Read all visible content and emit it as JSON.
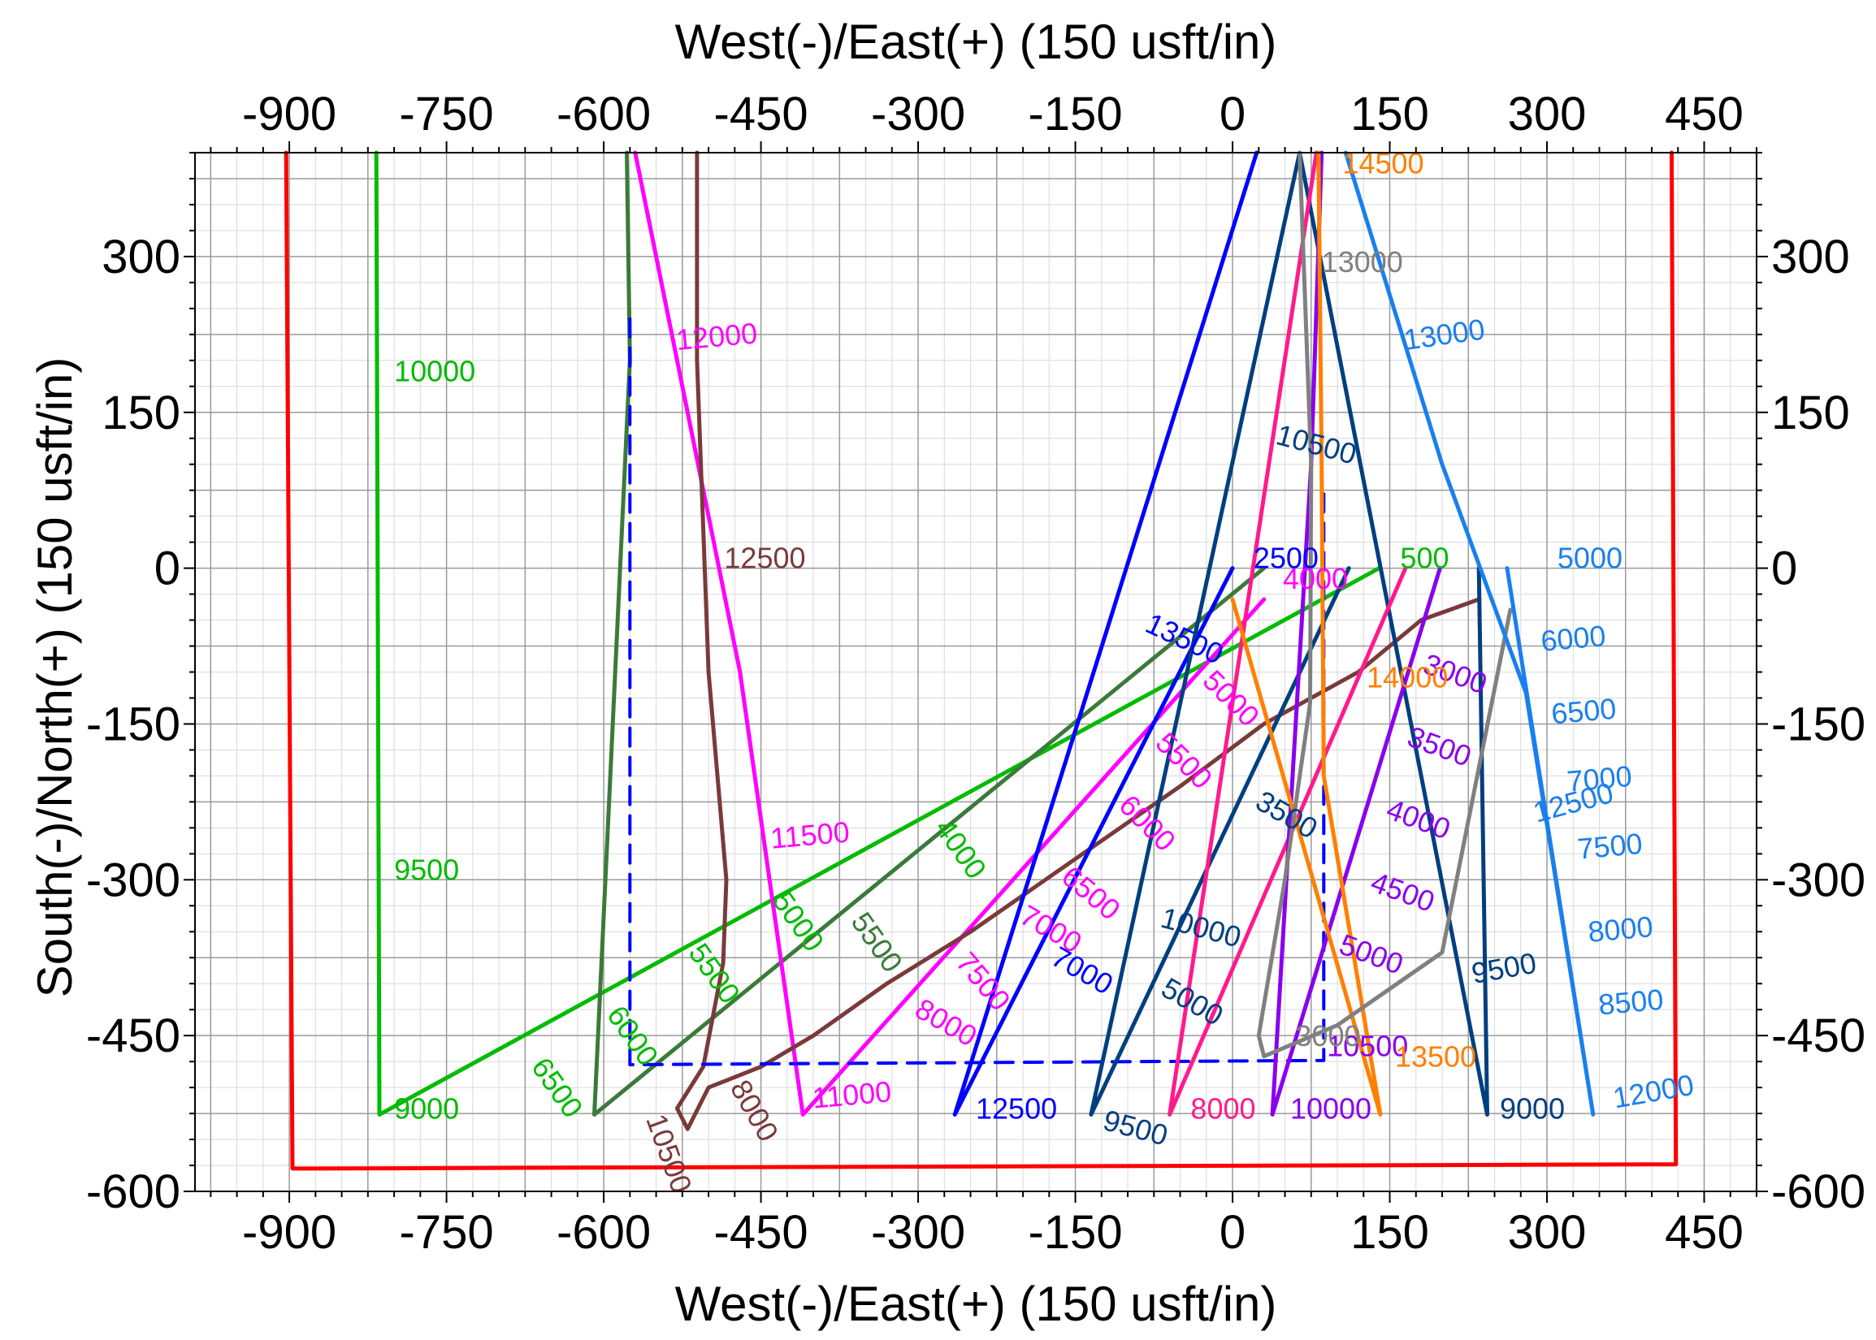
{
  "chart_data": {
    "type": "line",
    "title": "",
    "x_axis_title_top": "West(-)/East(+) (150 usft/in)",
    "x_axis_title_bottom": "West(-)/East(+) (150 usft/in)",
    "y_axis_title_left": "South(-)/North(+) (150 usft/in)",
    "xlim": [
      -990,
      500
    ],
    "ylim": [
      -600,
      400
    ],
    "x_ticks": [
      -900,
      -750,
      -600,
      -450,
      -300,
      -150,
      0,
      150,
      300,
      450
    ],
    "y_ticks": [
      -600,
      -450,
      -300,
      -150,
      0,
      150,
      300
    ],
    "grid": true,
    "series": [
      {
        "color": "#ff0000",
        "width": 5,
        "dash": false,
        "points": [
          [
            -903,
            400
          ],
          [
            -897,
            -578
          ],
          [
            423,
            -574
          ],
          [
            419,
            400
          ]
        ]
      },
      {
        "color": "#00bb00",
        "width": 5,
        "dash": false,
        "points": [
          [
            -817,
            400
          ],
          [
            -814,
            -526
          ],
          [
            140,
            0
          ]
        ]
      },
      {
        "color": "#3a7a3a",
        "width": 5,
        "dash": false,
        "points": [
          [
            -578,
            400
          ],
          [
            -575,
            200
          ],
          [
            -609,
            -526
          ],
          [
            30,
            0
          ]
        ]
      },
      {
        "color": "#ff00ff",
        "width": 5,
        "dash": false,
        "points": [
          [
            -570,
            400
          ],
          [
            -530,
            200
          ],
          [
            -470,
            -100
          ],
          [
            -410,
            -526
          ],
          [
            30,
            -30
          ]
        ]
      },
      {
        "color": "#7a3a3a",
        "width": 5,
        "dash": false,
        "points": [
          [
            -511,
            400
          ],
          [
            -511,
            200
          ],
          [
            -500,
            -100
          ],
          [
            -483,
            -300
          ],
          [
            -486,
            -380
          ],
          [
            -505,
            -480
          ],
          [
            -530,
            -520
          ],
          [
            -520,
            -540
          ],
          [
            -500,
            -500
          ],
          [
            -450,
            -480
          ],
          [
            -400,
            -450
          ],
          [
            -330,
            -400
          ],
          [
            -250,
            -350
          ],
          [
            -150,
            -280
          ],
          [
            -50,
            -210
          ],
          [
            30,
            -150
          ],
          [
            120,
            -100
          ],
          [
            180,
            -50
          ],
          [
            235,
            -30
          ]
        ]
      },
      {
        "color": "#0000ff",
        "width": 4,
        "dash": true,
        "points": [
          [
            -575,
            240
          ],
          [
            -575,
            -478
          ],
          [
            87,
            -474
          ],
          [
            87,
            80
          ]
        ]
      },
      {
        "color": "#0000ff",
        "width": 5,
        "dash": false,
        "points": [
          [
            23,
            400
          ],
          [
            -265,
            -526
          ],
          [
            0,
            0
          ]
        ]
      },
      {
        "color": "#003f7f",
        "width": 5,
        "dash": false,
        "points": [
          [
            64,
            400
          ],
          [
            -135,
            -526
          ],
          [
            111,
            0
          ]
        ]
      },
      {
        "color": "#003f7f",
        "width": 5,
        "dash": false,
        "points": [
          [
            64,
            400
          ],
          [
            243,
            -526
          ],
          [
            235,
            0
          ]
        ]
      },
      {
        "color": "#ff1a8c",
        "width": 5,
        "dash": false,
        "points": [
          [
            80,
            400
          ],
          [
            -60,
            -526
          ],
          [
            165,
            0
          ]
        ]
      },
      {
        "color": "#8a00ee",
        "width": 5,
        "dash": false,
        "points": [
          [
            85,
            400
          ],
          [
            75,
            100
          ],
          [
            38,
            -526
          ],
          [
            198,
            0
          ]
        ]
      },
      {
        "color": "#ff7f00",
        "width": 5,
        "dash": false,
        "points": [
          [
            82,
            400
          ],
          [
            85,
            100
          ],
          [
            87,
            -200
          ],
          [
            141,
            -526
          ],
          [
            0,
            -30
          ]
        ]
      },
      {
        "color": "#808080",
        "width": 5,
        "dash": false,
        "points": [
          [
            64,
            400
          ],
          [
            75,
            100
          ],
          [
            74,
            -130
          ],
          [
            50,
            -300
          ],
          [
            25,
            -450
          ],
          [
            30,
            -470
          ],
          [
            100,
            -440
          ],
          [
            200,
            -370
          ],
          [
            265,
            -40
          ]
        ]
      },
      {
        "color": "#1a7fee",
        "width": 5,
        "dash": false,
        "points": [
          [
            108,
            400
          ],
          [
            200,
            100
          ],
          [
            280,
            -120
          ],
          [
            344,
            -526
          ],
          [
            262,
            0
          ]
        ]
      }
    ],
    "annotations": [
      {
        "text": "10000",
        "x": -800,
        "y": 180,
        "color": "#00bb00",
        "rotate": 0
      },
      {
        "text": "9500",
        "x": -800,
        "y": -300,
        "color": "#00bb00",
        "rotate": 0
      },
      {
        "text": "9000",
        "x": -800,
        "y": -530,
        "color": "#00bb00",
        "rotate": 0
      },
      {
        "text": "6500",
        "x": -670,
        "y": -480,
        "color": "#00bb00",
        "rotate": 55
      },
      {
        "text": "6000",
        "x": -598,
        "y": -430,
        "color": "#00bb00",
        "rotate": 55
      },
      {
        "text": "5500",
        "x": -520,
        "y": -370,
        "color": "#00bb00",
        "rotate": 55
      },
      {
        "text": "5000",
        "x": -440,
        "y": -320,
        "color": "#00bb00",
        "rotate": 55
      },
      {
        "text": "4000",
        "x": -285,
        "y": -250,
        "color": "#00bb00",
        "rotate": 55
      },
      {
        "text": "500",
        "x": 160,
        "y": 0,
        "color": "#00bb00",
        "rotate": 0
      },
      {
        "text": "5500",
        "x": -365,
        "y": -340,
        "color": "#3a7a3a",
        "rotate": 55
      },
      {
        "text": "12000",
        "x": -530,
        "y": 210,
        "color": "#ff00ff",
        "rotate": -5
      },
      {
        "text": "11500",
        "x": -440,
        "y": -270,
        "color": "#ff00ff",
        "rotate": -5
      },
      {
        "text": "11000",
        "x": -400,
        "y": -520,
        "color": "#ff00ff",
        "rotate": -5
      },
      {
        "text": "7500",
        "x": -265,
        "y": -380,
        "color": "#ff00ff",
        "rotate": 50
      },
      {
        "text": "8000",
        "x": -305,
        "y": -430,
        "color": "#ff00ff",
        "rotate": 30
      },
      {
        "text": "7000",
        "x": -205,
        "y": -340,
        "color": "#ff00ff",
        "rotate": 30
      },
      {
        "text": "6500",
        "x": -165,
        "y": -300,
        "color": "#ff00ff",
        "rotate": 40
      },
      {
        "text": "6000",
        "x": -110,
        "y": -230,
        "color": "#ff00ff",
        "rotate": 45
      },
      {
        "text": "5500",
        "x": -75,
        "y": -170,
        "color": "#ff00ff",
        "rotate": 45
      },
      {
        "text": "5000",
        "x": -30,
        "y": -110,
        "color": "#ff00ff",
        "rotate": 45
      },
      {
        "text": "4000",
        "x": 48,
        "y": -20,
        "color": "#ff00ff",
        "rotate": 0
      },
      {
        "text": "12500",
        "x": -485,
        "y": 0,
        "color": "#7a3a3a",
        "rotate": 0
      },
      {
        "text": "8000",
        "x": -480,
        "y": -500,
        "color": "#7a3a3a",
        "rotate": 60
      },
      {
        "text": "10500",
        "x": -560,
        "y": -530,
        "color": "#7a3a3a",
        "rotate": 70
      },
      {
        "text": "12500",
        "x": -245,
        "y": -530,
        "color": "#0000ff",
        "rotate": 0
      },
      {
        "text": "7000",
        "x": -175,
        "y": -380,
        "color": "#0000ff",
        "rotate": 30
      },
      {
        "text": "13500",
        "x": -85,
        "y": -60,
        "color": "#0000ff",
        "rotate": 25
      },
      {
        "text": "2500",
        "x": 20,
        "y": 0,
        "color": "#0000ff",
        "rotate": 0
      },
      {
        "text": "9500",
        "x": -125,
        "y": -540,
        "color": "#003f7f",
        "rotate": 15
      },
      {
        "text": "10000",
        "x": -70,
        "y": -345,
        "color": "#003f7f",
        "rotate": 15
      },
      {
        "text": "5000",
        "x": -70,
        "y": -410,
        "color": "#003f7f",
        "rotate": 30
      },
      {
        "text": "3500",
        "x": 20,
        "y": -230,
        "color": "#003f7f",
        "rotate": 30
      },
      {
        "text": "10500",
        "x": 40,
        "y": 120,
        "color": "#003f7f",
        "rotate": 15
      },
      {
        "text": "9500",
        "x": 230,
        "y": -400,
        "color": "#003f7f",
        "rotate": -10
      },
      {
        "text": "9000",
        "x": 255,
        "y": -530,
        "color": "#003f7f",
        "rotate": 0
      },
      {
        "text": "8000",
        "x": -40,
        "y": -530,
        "color": "#ff1a8c",
        "rotate": 0
      },
      {
        "text": "10000",
        "x": 55,
        "y": -530,
        "color": "#8a00ee",
        "rotate": 0
      },
      {
        "text": "5000",
        "x": 100,
        "y": -370,
        "color": "#8a00ee",
        "rotate": 20
      },
      {
        "text": "4500",
        "x": 130,
        "y": -310,
        "color": "#8a00ee",
        "rotate": 20
      },
      {
        "text": "4000",
        "x": 145,
        "y": -240,
        "color": "#8a00ee",
        "rotate": 20
      },
      {
        "text": "3500",
        "x": 165,
        "y": -170,
        "color": "#8a00ee",
        "rotate": 20
      },
      {
        "text": "3000",
        "x": 180,
        "y": -100,
        "color": "#8a00ee",
        "rotate": 20
      },
      {
        "text": "10500",
        "x": 90,
        "y": -470,
        "color": "#8a00ee",
        "rotate": 0
      },
      {
        "text": "14500",
        "x": 105,
        "y": 380,
        "color": "#ff7f00",
        "rotate": 0
      },
      {
        "text": "14000",
        "x": 128,
        "y": -115,
        "color": "#ff7f00",
        "rotate": 0
      },
      {
        "text": "13500",
        "x": 155,
        "y": -480,
        "color": "#ff7f00",
        "rotate": 0
      },
      {
        "text": "13000",
        "x": 85,
        "y": 285,
        "color": "#808080",
        "rotate": 0
      },
      {
        "text": "3000",
        "x": 60,
        "y": -460,
        "color": "#808080",
        "rotate": 0
      },
      {
        "text": "13000",
        "x": 165,
        "y": 210,
        "color": "#1a7fee",
        "rotate": -8
      },
      {
        "text": "5000",
        "x": 310,
        "y": 0,
        "color": "#1a7fee",
        "rotate": 0
      },
      {
        "text": "6000",
        "x": 295,
        "y": -80,
        "color": "#1a7fee",
        "rotate": -5
      },
      {
        "text": "6500",
        "x": 305,
        "y": -150,
        "color": "#1a7fee",
        "rotate": -5
      },
      {
        "text": "7000",
        "x": 320,
        "y": -215,
        "color": "#1a7fee",
        "rotate": -5
      },
      {
        "text": "12500",
        "x": 290,
        "y": -245,
        "color": "#1a7fee",
        "rotate": -15
      },
      {
        "text": "7500",
        "x": 330,
        "y": -280,
        "color": "#1a7fee",
        "rotate": -5
      },
      {
        "text": "8000",
        "x": 340,
        "y": -360,
        "color": "#1a7fee",
        "rotate": -5
      },
      {
        "text": "8500",
        "x": 350,
        "y": -430,
        "color": "#1a7fee",
        "rotate": -5
      },
      {
        "text": "12000",
        "x": 365,
        "y": -520,
        "color": "#1a7fee",
        "rotate": -10
      }
    ]
  }
}
